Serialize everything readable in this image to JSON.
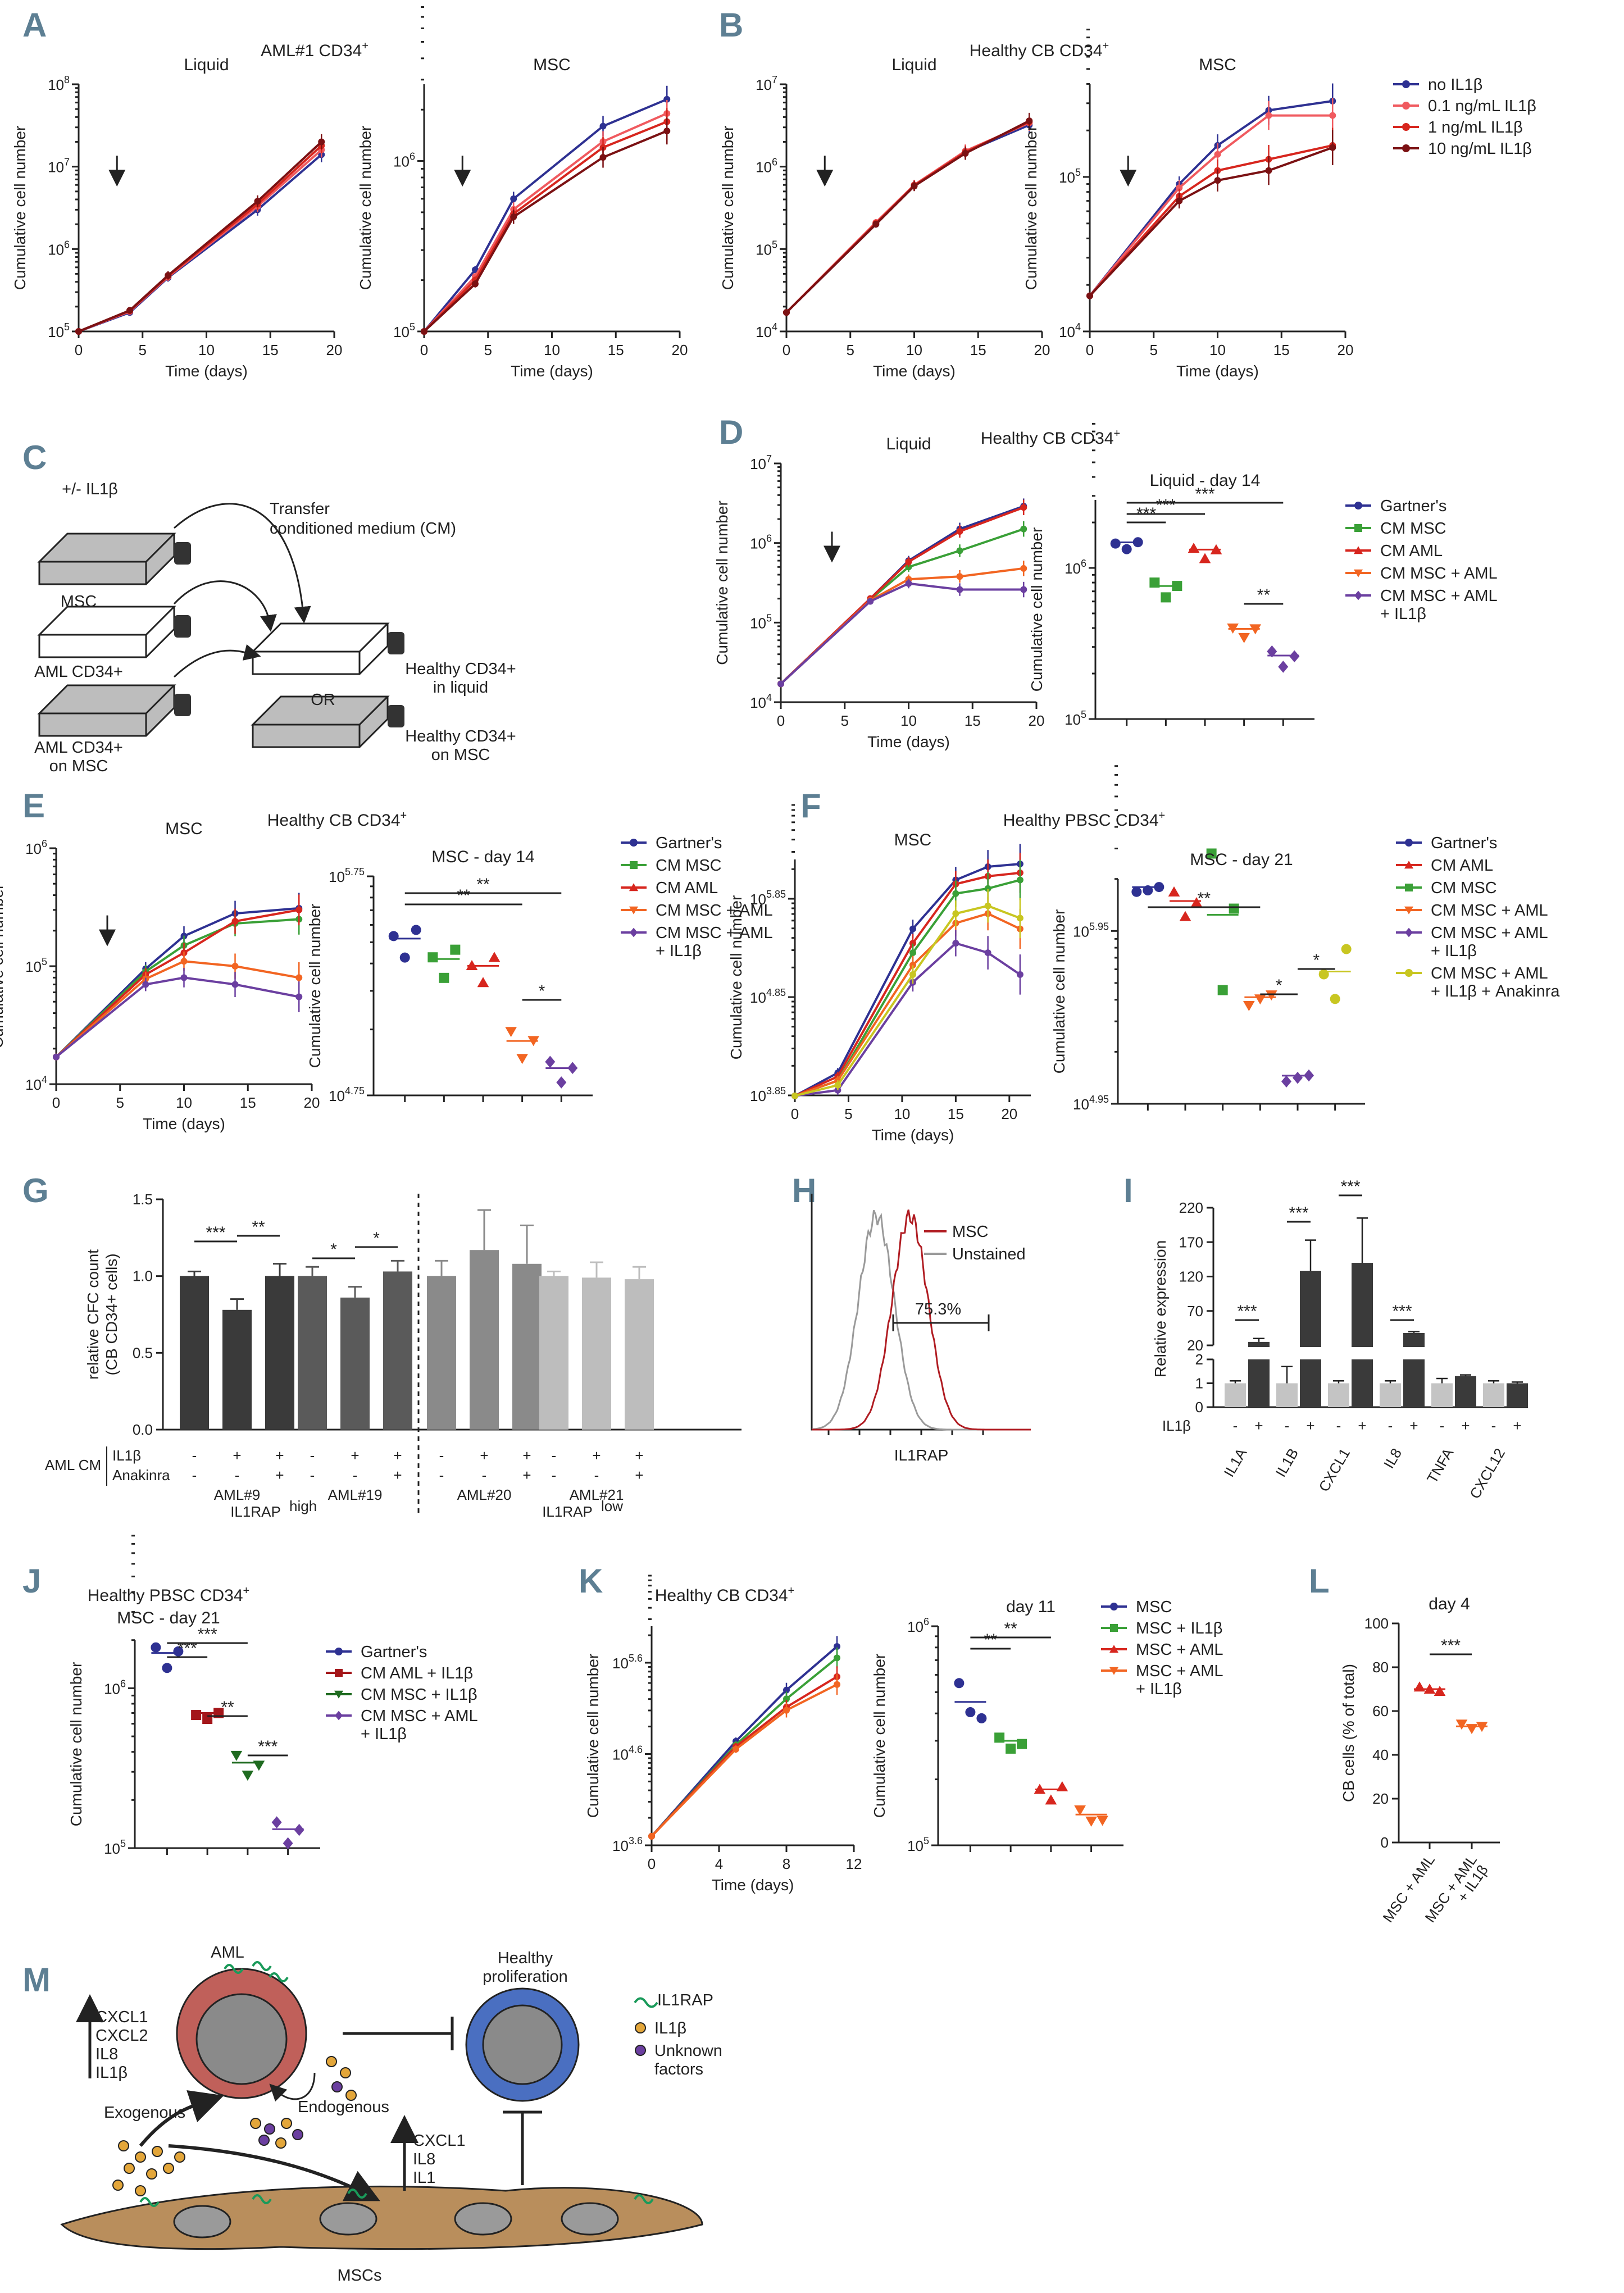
{
  "colors": {
    "navy": "#2e3192",
    "pink": "#f05a5f",
    "red": "#d7261e",
    "darkred": "#7b1113",
    "green": "#3aa037",
    "orange": "#f26522",
    "purple": "#6b3fa0",
    "yellow": "#c8c621",
    "gray": "#9a9a9a",
    "darkgray": "#555555",
    "panel": "#5d7f93"
  },
  "panels": {
    "A": "A",
    "B": "B",
    "C": "C",
    "D": "D",
    "E": "E",
    "F": "F",
    "G": "G",
    "H": "H",
    "I": "I",
    "J": "J",
    "K": "K",
    "L": "L",
    "M": "M"
  },
  "chart_data": [
    {
      "id": "A",
      "type": "line",
      "title": "AML#1 CD34+",
      "subtitle": [
        "Liquid",
        "MSC"
      ],
      "xlabel": "Time (days)",
      "ylabel": "Cumulative cell number",
      "x": [
        0,
        4,
        7,
        14,
        19
      ],
      "legend": [
        "no IL1β",
        "0.1 ng/mL IL1β",
        "1 ng/mL IL1β",
        "10 ng/mL IL1β"
      ],
      "series_liquid": [
        [
          100000,
          170000,
          450000,
          3000000,
          14000000
        ],
        [
          100000,
          175000,
          460000,
          3300000,
          16000000
        ],
        [
          100000,
          178000,
          470000,
          3500000,
          18000000
        ],
        [
          100000,
          180000,
          480000,
          3800000,
          20000000
        ]
      ],
      "series_msc": [
        [
          100000,
          230000,
          600000,
          1600000,
          2300000
        ],
        [
          100000,
          210000,
          520000,
          1300000,
          1900000
        ],
        [
          100000,
          200000,
          490000,
          1200000,
          1700000
        ],
        [
          100000,
          190000,
          470000,
          1050000,
          1500000
        ]
      ]
    },
    {
      "id": "B",
      "type": "line",
      "title": "Healthy CB CD34+",
      "subtitle": [
        "Liquid",
        "MSC"
      ],
      "xlabel": "Time (days)",
      "ylabel": "Cumulative cell number",
      "x": [
        0,
        4,
        7,
        10,
        14,
        19
      ],
      "series_liquid": [
        [
          17000,
          null,
          200000,
          600000,
          1500000,
          3200000
        ],
        [
          17000,
          null,
          210000,
          600000,
          1550000,
          3400000
        ],
        [
          17000,
          null,
          205000,
          590000,
          1500000,
          3500000
        ],
        [
          17000,
          null,
          200000,
          580000,
          1450000,
          3600000
        ]
      ],
      "series_msc": [
        [
          17000,
          null,
          90000,
          160000,
          270000,
          310000
        ],
        [
          17000,
          null,
          85000,
          140000,
          250000,
          250000
        ],
        [
          17000,
          null,
          75000,
          110000,
          130000,
          160000
        ],
        [
          17000,
          null,
          70000,
          95000,
          110000,
          155000
        ]
      ]
    },
    {
      "id": "C",
      "type": "diagram",
      "labels": [
        "+/- IL1β",
        "Transfer",
        "conditioned medium (CM)",
        "MSC",
        "AML CD34+",
        "AML CD34+",
        "on MSC",
        "Healthy CD34+",
        "in liquid",
        "OR",
        "Healthy CD34+",
        "on MSC"
      ]
    },
    {
      "id": "D",
      "type": "line+scatter",
      "title": "Healthy CB CD34+",
      "subtitle": [
        "Liquid",
        "Liquid - day 14"
      ],
      "xlabel": "Time (days)",
      "ylabel": "Cumulative cell number",
      "x": [
        0,
        4,
        7,
        10,
        14,
        19
      ],
      "legend": [
        "Gartner's",
        "CM MSC",
        "CM AML",
        "CM MSC + AML",
        "CM MSC + AML + IL1β"
      ],
      "series": [
        [
          17000,
          null,
          200000,
          600000,
          1500000,
          2900000
        ],
        [
          17000,
          null,
          195000,
          500000,
          800000,
          1500000
        ],
        [
          17000,
          null,
          200000,
          580000,
          1400000,
          2800000
        ],
        [
          17000,
          null,
          190000,
          350000,
          380000,
          480000
        ],
        [
          17000,
          null,
          185000,
          310000,
          260000,
          260000
        ]
      ],
      "day14": [
        [
          1450000,
          1500000,
          1480000
        ],
        [
          800000,
          720000,
          760000
        ],
        [
          1350000,
          1300000,
          1320000
        ],
        [
          400000,
          390000,
          395000
        ],
        [
          280000,
          250000,
          260000
        ]
      ],
      "significance": [
        "***",
        "***",
        "***",
        "**"
      ]
    },
    {
      "id": "E",
      "type": "line+scatter",
      "title": "Healthy CB CD34+",
      "subtitle": [
        "MSC",
        "MSC - day 14"
      ],
      "xlabel": "Time (days)",
      "ylabel": "Cumulative cell number",
      "x": [
        0,
        4,
        7,
        10,
        14,
        19
      ],
      "legend": [
        "Gartner's",
        "CM MSC",
        "CM AML",
        "CM MSC + AML",
        "CM MSC + AML + IL1β"
      ],
      "series": [
        [
          17000,
          null,
          95000,
          180000,
          280000,
          310000
        ],
        [
          17000,
          null,
          90000,
          150000,
          230000,
          250000
        ],
        [
          17000,
          null,
          85000,
          130000,
          240000,
          300000
        ],
        [
          17000,
          null,
          78000,
          110000,
          100000,
          80000
        ],
        [
          17000,
          null,
          70000,
          80000,
          70000,
          55000
        ]
      ],
      "day14": [
        [
          300000,
          260000,
          320000
        ],
        [
          240000,
          210000,
          260000
        ],
        [
          220000,
          200000,
          240000
        ],
        [
          110000,
          90000,
          100000
        ],
        [
          80000,
          70000,
          75000
        ]
      ],
      "significance": [
        "**",
        "**",
        "*"
      ]
    },
    {
      "id": "F",
      "type": "line+scatter",
      "title": "Healthy PBSC CD34+",
      "subtitle": [
        "MSC",
        "MSC - day 21"
      ],
      "xlabel": "Time (days)",
      "ylabel": "Cumulative cell number",
      "x": [
        0,
        4,
        11,
        15,
        18,
        21
      ],
      "legend": [
        "Gartner's",
        "CM AML",
        "CM MSC",
        "CM MSC + AML",
        "CM MSC + AML + IL1β",
        "CM MSC + AML + IL1β + Anakinra"
      ],
      "series": [
        [
          7000,
          12000,
          350000,
          1100000,
          1500000,
          1600000
        ],
        [
          7000,
          11000,
          250000,
          1000000,
          1200000,
          1300000
        ],
        [
          7000,
          10000,
          200000,
          800000,
          900000,
          1100000
        ],
        [
          7000,
          10000,
          150000,
          400000,
          500000,
          350000
        ],
        [
          7000,
          8000,
          100000,
          250000,
          200000,
          120000
        ],
        [
          7000,
          9000,
          120000,
          500000,
          600000,
          450000
        ]
      ],
      "day21": [
        [
          1500000,
          1700000,
          1600000
        ],
        [
          1500000,
          1200000,
          1300000
        ],
        [
          2500000,
          450000,
          1200000
        ],
        [
          330000,
          400000,
          380000
        ],
        [
          120000,
          140000,
          130000
        ],
        [
          500000,
          400000,
          700000
        ]
      ],
      "significance": [
        "**",
        "*",
        "*"
      ]
    },
    {
      "id": "G",
      "type": "bar",
      "ylabel": "relative CFC count (CB CD34+ cells)",
      "ylim": [
        0,
        1.5
      ],
      "ticks": [
        "0.0",
        "0.5",
        "1.0",
        "1.5"
      ],
      "groups": [
        "AML#9",
        "AML#19",
        "AML#20",
        "AML#21"
      ],
      "superlabels": [
        "IL1RAPhigh",
        "IL1RAPlow"
      ],
      "values": [
        [
          1.0,
          0.78,
          1.0
        ],
        [
          1.0,
          0.86,
          1.03
        ],
        [
          1.0,
          1.17,
          1.08
        ],
        [
          1.0,
          0.99,
          0.98
        ]
      ],
      "errors": [
        [
          0.03,
          0.07,
          0.08
        ],
        [
          0.06,
          0.07,
          0.07
        ],
        [
          0.1,
          0.26,
          0.25
        ],
        [
          0.03,
          0.1,
          0.08
        ]
      ],
      "rowlabels": [
        "AML CM",
        "IL1β",
        "Anakinra"
      ],
      "il1b": [
        "-",
        "+",
        "+"
      ],
      "anakinra": [
        "-",
        "-",
        "+"
      ],
      "significance": [
        "***",
        "**",
        "*",
        "*"
      ]
    },
    {
      "id": "H",
      "type": "histogram",
      "legend": [
        "MSC",
        "Unstained"
      ],
      "xlabel": "IL1RAP",
      "gate": "75.3%"
    },
    {
      "id": "I",
      "type": "bar",
      "ylabel": "Relative expression",
      "categories": [
        "IL1A",
        "IL1B",
        "CXCL1",
        "IL8",
        "TNFA",
        "CXCL12"
      ],
      "ticks": [
        "0",
        "1",
        "2",
        "20",
        "70",
        "120",
        "170",
        "220"
      ],
      "minus": [
        1.0,
        1.0,
        1.0,
        1.0,
        1.0,
        1.0
      ],
      "plus": [
        25,
        128,
        140,
        38,
        1.3,
        1.0
      ],
      "errors_minus": [
        0.1,
        0.7,
        0.1,
        0.1,
        0.2,
        0.1
      ],
      "errors_plus": [
        5,
        45,
        65,
        2,
        0.05,
        0.05
      ],
      "significance": [
        "***",
        "***",
        "***",
        "***"
      ],
      "il1b_label": "IL1β"
    },
    {
      "id": "J",
      "type": "scatter",
      "title": "Healthy PBSC CD34+",
      "subtitle": "MSC - day 21",
      "ylabel": "Cumulative cell number",
      "legend": [
        "Gartner's",
        "CM AML + IL1β",
        "CM MSC + IL1β",
        "CM MSC + AML + IL1β"
      ],
      "values": [
        [
          1800000,
          1500000,
          1700000
        ],
        [
          680000,
          720000,
          700000
        ],
        [
          380000,
          320000,
          330000
        ],
        [
          145000,
          120000,
          130000
        ]
      ],
      "significance": [
        "***",
        "***",
        "***",
        "**",
        "***"
      ]
    },
    {
      "id": "K",
      "type": "line+scatter",
      "title": "Healthy CB CD34+",
      "subtitle": "day 11",
      "xlabel": "Time (days)",
      "ylabel": "Cumulative cell number",
      "x": [
        0,
        5,
        8,
        11
      ],
      "legend": [
        "MSC",
        "MSC + IL1β",
        "MSC + AML",
        "MSC + AML + IL1β"
      ],
      "series": [
        [
          5000,
          55000,
          200000,
          600000
        ],
        [
          5000,
          50000,
          160000,
          450000
        ],
        [
          5000,
          48000,
          130000,
          280000
        ],
        [
          5000,
          45000,
          120000,
          230000
        ]
      ],
      "day11": [
        [
          550000,
          440000,
          380000
        ],
        [
          310000,
          300000,
          290000
        ],
        [
          180000,
          175000,
          185000
        ],
        [
          145000,
          140000,
          130000
        ]
      ],
      "significance": [
        "**",
        "**"
      ]
    },
    {
      "id": "L",
      "type": "scatter",
      "title": "day 4",
      "ylabel": "CB cells (% of total)",
      "ylim": [
        0,
        100
      ],
      "ticks": [
        "0",
        "20",
        "40",
        "60",
        "80",
        "100"
      ],
      "categories": [
        "MSC + AML",
        "MSC + AML + IL1β"
      ],
      "values": [
        [
          71,
          70,
          69
        ],
        [
          54,
          52,
          53
        ]
      ],
      "significance": [
        "***"
      ]
    },
    {
      "id": "M",
      "type": "diagram",
      "labels": [
        "AML",
        "CXCL1",
        "CXCL2",
        "IL8",
        "IL1β",
        "Endogenous",
        "Exogenous",
        "Healthy",
        "proliferation",
        "IL1RAP",
        "IL1β",
        "Unknown",
        "factors",
        "CXCL1",
        "IL8",
        "IL1",
        "MSCs"
      ]
    }
  ],
  "text": {
    "liquid": "Liquid",
    "msc": "MSC",
    "time": "Time (days)",
    "ccn": "Cumulative cell number",
    "amlTitle": "AML#1 CD34",
    "cbTitle": "Healthy CB CD34",
    "pbscTitle": "Healthy PBSC CD34",
    "sup": "+",
    "legA": [
      "no IL1β",
      "0.1 ng/mL IL1β",
      "1 ng/mL IL1β",
      "10 ng/mL IL1β"
    ],
    "liqD14": "Liquid - day 14",
    "mscD14": "MSC - day 14",
    "mscD21": "MSC - day 21",
    "day11": "day 11",
    "day4": "day 4"
  }
}
